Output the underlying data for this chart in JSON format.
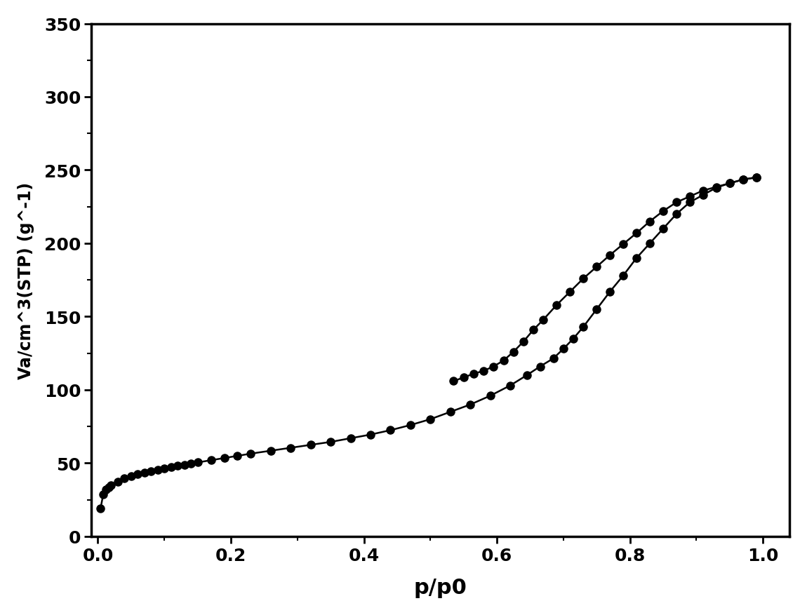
{
  "adsorption_x": [
    0.004,
    0.008,
    0.012,
    0.016,
    0.02,
    0.03,
    0.04,
    0.05,
    0.06,
    0.07,
    0.08,
    0.09,
    0.1,
    0.11,
    0.12,
    0.13,
    0.14,
    0.15,
    0.17,
    0.19,
    0.21,
    0.23,
    0.26,
    0.29,
    0.32,
    0.35,
    0.38,
    0.41,
    0.44,
    0.47,
    0.5,
    0.53,
    0.56,
    0.59,
    0.62,
    0.645,
    0.665,
    0.685,
    0.7,
    0.715,
    0.73,
    0.75,
    0.77,
    0.79,
    0.81,
    0.83,
    0.85,
    0.87,
    0.89,
    0.91,
    0.93,
    0.95,
    0.97,
    0.99
  ],
  "adsorption_y": [
    19.0,
    28.5,
    32.0,
    33.5,
    35.0,
    37.5,
    39.5,
    41.0,
    42.5,
    43.5,
    44.5,
    45.5,
    46.5,
    47.5,
    48.2,
    49.0,
    49.8,
    50.5,
    52.0,
    53.5,
    55.0,
    56.5,
    58.5,
    60.5,
    62.5,
    64.5,
    67.0,
    69.5,
    72.5,
    76.0,
    80.0,
    85.0,
    90.0,
    96.0,
    103.0,
    110.0,
    116.0,
    121.5,
    128.0,
    135.0,
    143.0,
    155.0,
    167.0,
    178.0,
    190.0,
    200.0,
    210.0,
    220.0,
    228.0,
    233.0,
    238.0,
    241.0,
    243.5,
    245.0
  ],
  "desorption_x": [
    0.99,
    0.97,
    0.95,
    0.93,
    0.91,
    0.89,
    0.87,
    0.85,
    0.83,
    0.81,
    0.79,
    0.77,
    0.75,
    0.73,
    0.71,
    0.69,
    0.67,
    0.655,
    0.64,
    0.625,
    0.61,
    0.595,
    0.58,
    0.565,
    0.55,
    0.535
  ],
  "desorption_y": [
    245.0,
    243.5,
    241.0,
    238.5,
    236.0,
    232.0,
    228.0,
    222.0,
    215.0,
    207.0,
    199.5,
    192.0,
    184.0,
    176.0,
    167.0,
    158.0,
    148.0,
    141.0,
    133.0,
    126.0,
    120.0,
    116.0,
    113.0,
    111.0,
    108.5,
    106.0
  ],
  "line_color": "#000000",
  "marker_color": "#000000",
  "marker_size": 8,
  "line_width": 1.8,
  "xlabel": "p/p0",
  "ylabel": "Va/cm^3(STP) (g^-1)",
  "xlim": [
    -0.01,
    1.04
  ],
  "ylim": [
    0,
    350
  ],
  "yticks": [
    0,
    50,
    100,
    150,
    200,
    250,
    300,
    350
  ],
  "xticks": [
    0.0,
    0.2,
    0.4,
    0.6,
    0.8,
    1.0
  ],
  "xlabel_fontsize": 22,
  "ylabel_fontsize": 17,
  "tick_fontsize": 18,
  "background_color": "#ffffff",
  "figure_facecolor": "#ffffff"
}
